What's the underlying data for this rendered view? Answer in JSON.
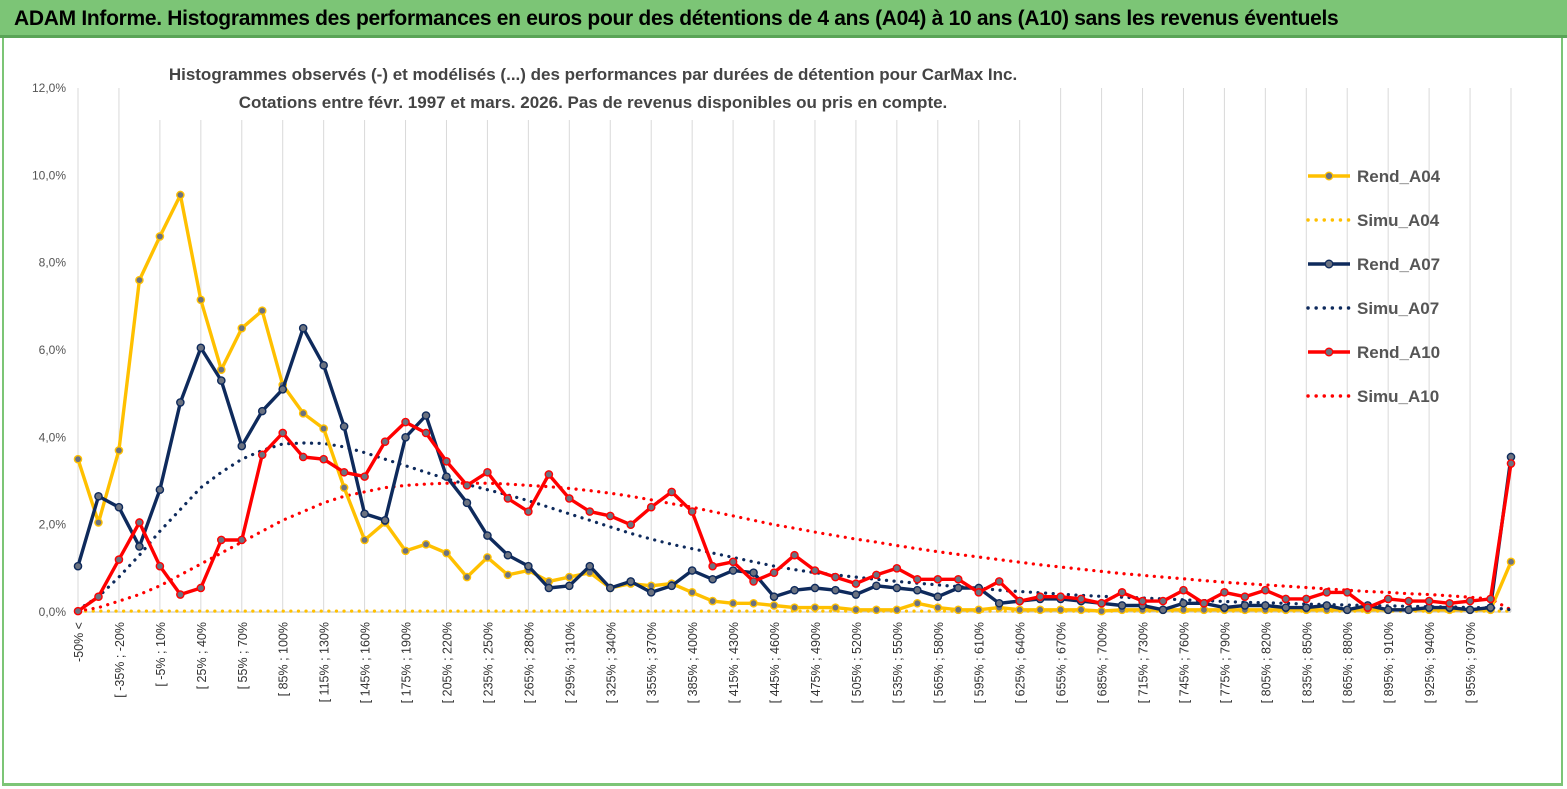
{
  "header": {
    "title": "ADAM Informe. Histogrammes des performances en euros pour des détentions de 4 ans (A04) à 10 ans (A10) sans les revenus éventuels"
  },
  "chart_data": {
    "type": "line",
    "title": "Histogrammes observés (-) et modélisés (...) des performances par durées de détention pour CarMax Inc.",
    "subtitle": "Cotations entre févr. 1997 et mars. 2026. Pas de revenus disponibles ou pris en compte.",
    "xlabel": "",
    "ylabel": "",
    "ylim": [
      0,
      12
    ],
    "yticks": [
      "0,0%",
      "2,0%",
      "4,0%",
      "6,0%",
      "8,0%",
      "10,0%",
      "12,0%"
    ],
    "grid": "vertical",
    "legend_position": "right",
    "x_tick_labels": [
      "-50% <",
      "[ -35% ; -20%",
      "[ -5% ; 10%",
      "[ 25% ; 40%",
      "[ 55% ; 70%",
      "[ 85% ; 100%",
      "[ 115% ; 130%",
      "[ 145% ; 160%",
      "[ 175% ; 190%",
      "[ 205% ; 220%",
      "[ 235% ; 250%",
      "[ 265% ; 280%",
      "[ 295% ; 310%",
      "[ 325% ; 340%",
      "[ 355% ; 370%",
      "[ 385% ; 400%",
      "[ 415% ; 430%",
      "[ 445% ; 460%",
      "[ 475% ; 490%",
      "[ 505% ; 520%",
      "[ 535% ; 550%",
      "[ 565% ; 580%",
      "[ 595% ; 610%",
      "[ 625% ; 640%",
      "[ 655% ; 670%",
      "[ 685% ; 700%",
      "[ 715% ; 730%",
      "[ 745% ; 760%",
      "[ 775% ; 790%",
      "[ 805% ; 820%",
      "[ 835% ; 850%",
      "[ 865% ; 880%",
      "[ 895% ; 910%",
      "[ 925% ; 940%",
      "[ 955% ; 970%"
    ],
    "series": [
      {
        "name": "Rend_A04",
        "style": "solid",
        "color": "#ffc000",
        "marker": true,
        "values": [
          3.5,
          2.05,
          3.7,
          7.6,
          8.6,
          9.55,
          7.15,
          5.55,
          6.5,
          6.9,
          5.2,
          4.55,
          4.2,
          2.85,
          1.65,
          2.05,
          1.4,
          1.55,
          1.35,
          0.8,
          1.25,
          0.85,
          0.95,
          0.7,
          0.8,
          0.9,
          0.55,
          0.65,
          0.6,
          0.65,
          0.45,
          0.25,
          0.2,
          0.2,
          0.15,
          0.1,
          0.1,
          0.1,
          0.05,
          0.05,
          0.05,
          0.2,
          0.1,
          0.05,
          0.05,
          0.1,
          0.05,
          0.05,
          0.05,
          0.05,
          0.02,
          0.05,
          0.05,
          0.05,
          0.05,
          0.05,
          0.05,
          0.05,
          0.05,
          0.05,
          0.05,
          0.05,
          0.05,
          0.05,
          0.05,
          0.05,
          0.05,
          0.05,
          0.05,
          0.05,
          1.15
        ]
      },
      {
        "name": "Simu_A04",
        "style": "dotted",
        "color": "#ffc000",
        "marker": false,
        "values": [
          0.02,
          0.02,
          0.02,
          0.02,
          0.02,
          0.02,
          0.02,
          0.02,
          0.02,
          0.02,
          0.02,
          0.02,
          0.02,
          0.02,
          0.02,
          0.02,
          0.02,
          0.02,
          0.02,
          0.02,
          0.02,
          0.02,
          0.02,
          0.02,
          0.02,
          0.02,
          0.02,
          0.02,
          0.02,
          0.02,
          0.02,
          0.02,
          0.02,
          0.02,
          0.02,
          0.02,
          0.02,
          0.02,
          0.02,
          0.02,
          0.02,
          0.02,
          0.02,
          0.02,
          0.02,
          0.02,
          0.02,
          0.02,
          0.02,
          0.02,
          0.02,
          0.02,
          0.02,
          0.02,
          0.02,
          0.02,
          0.02,
          0.02,
          0.02,
          0.02,
          0.02,
          0.02,
          0.02,
          0.02,
          0.02,
          0.02,
          0.02,
          0.02,
          0.02,
          0.02,
          0.02
        ]
      },
      {
        "name": "Rend_A07",
        "style": "solid",
        "color": "#0e2a5c",
        "marker": true,
        "values": [
          1.05,
          2.65,
          2.4,
          1.5,
          2.8,
          4.8,
          6.05,
          5.3,
          3.8,
          4.6,
          5.1,
          6.5,
          5.65,
          4.25,
          2.25,
          2.1,
          4.0,
          4.5,
          3.1,
          2.5,
          1.75,
          1.3,
          1.05,
          0.55,
          0.6,
          1.05,
          0.55,
          0.7,
          0.45,
          0.6,
          0.95,
          0.75,
          0.95,
          0.9,
          0.35,
          0.5,
          0.55,
          0.5,
          0.4,
          0.6,
          0.55,
          0.5,
          0.35,
          0.55,
          0.55,
          0.2,
          0.25,
          0.3,
          0.3,
          0.25,
          0.2,
          0.15,
          0.15,
          0.05,
          0.2,
          0.2,
          0.1,
          0.15,
          0.15,
          0.1,
          0.1,
          0.15,
          0.05,
          0.15,
          0.05,
          0.05,
          0.1,
          0.1,
          0.05,
          0.1,
          3.55
        ]
      },
      {
        "name": "Simu_A07",
        "style": "dotted",
        "color": "#0e2a5c",
        "marker": false,
        "values": [
          0.05,
          0.35,
          0.8,
          1.3,
          1.85,
          2.35,
          2.85,
          3.2,
          3.5,
          3.7,
          3.85,
          3.87,
          3.86,
          3.78,
          3.65,
          3.5,
          3.35,
          3.2,
          3.05,
          2.92,
          2.8,
          2.68,
          2.55,
          2.4,
          2.25,
          2.1,
          1.95,
          1.8,
          1.67,
          1.55,
          1.45,
          1.35,
          1.25,
          1.15,
          1.05,
          0.97,
          0.9,
          0.85,
          0.8,
          0.75,
          0.7,
          0.66,
          0.62,
          0.58,
          0.55,
          0.5,
          0.47,
          0.44,
          0.41,
          0.38,
          0.36,
          0.34,
          0.32,
          0.3,
          0.28,
          0.26,
          0.24,
          0.22,
          0.21,
          0.2,
          0.18,
          0.17,
          0.16,
          0.15,
          0.14,
          0.13,
          0.12,
          0.12,
          0.1,
          0.1,
          0.05
        ]
      },
      {
        "name": "Rend_A10",
        "style": "solid",
        "color": "#ff0000",
        "marker": true,
        "values": [
          0.02,
          0.35,
          1.2,
          2.05,
          1.05,
          0.4,
          0.55,
          1.65,
          1.65,
          3.6,
          4.1,
          3.55,
          3.5,
          3.2,
          3.1,
          3.9,
          4.35,
          4.1,
          3.45,
          2.9,
          3.2,
          2.6,
          2.3,
          3.15,
          2.6,
          2.3,
          2.2,
          2.0,
          2.4,
          2.75,
          2.3,
          1.05,
          1.15,
          0.7,
          0.9,
          1.3,
          0.95,
          0.8,
          0.65,
          0.85,
          1.0,
          0.75,
          0.75,
          0.75,
          0.45,
          0.7,
          0.25,
          0.35,
          0.35,
          0.3,
          0.2,
          0.45,
          0.25,
          0.25,
          0.5,
          0.2,
          0.45,
          0.35,
          0.5,
          0.3,
          0.3,
          0.45,
          0.45,
          0.1,
          0.3,
          0.25,
          0.25,
          0.2,
          0.25,
          0.3,
          3.4
        ]
      },
      {
        "name": "Simu_A10",
        "style": "dotted",
        "color": "#ff0000",
        "marker": false,
        "values": [
          0.02,
          0.1,
          0.25,
          0.4,
          0.6,
          0.85,
          1.1,
          1.35,
          1.6,
          1.85,
          2.1,
          2.3,
          2.5,
          2.65,
          2.75,
          2.85,
          2.9,
          2.93,
          2.95,
          2.95,
          2.95,
          2.93,
          2.9,
          2.87,
          2.83,
          2.78,
          2.72,
          2.65,
          2.57,
          2.48,
          2.4,
          2.3,
          2.2,
          2.1,
          2.0,
          1.92,
          1.83,
          1.75,
          1.67,
          1.6,
          1.52,
          1.45,
          1.38,
          1.32,
          1.26,
          1.2,
          1.14,
          1.08,
          1.03,
          0.98,
          0.93,
          0.88,
          0.84,
          0.8,
          0.76,
          0.72,
          0.68,
          0.65,
          0.62,
          0.59,
          0.56,
          0.53,
          0.5,
          0.47,
          0.45,
          0.42,
          0.4,
          0.37,
          0.34,
          0.3,
          0.05
        ]
      }
    ]
  }
}
